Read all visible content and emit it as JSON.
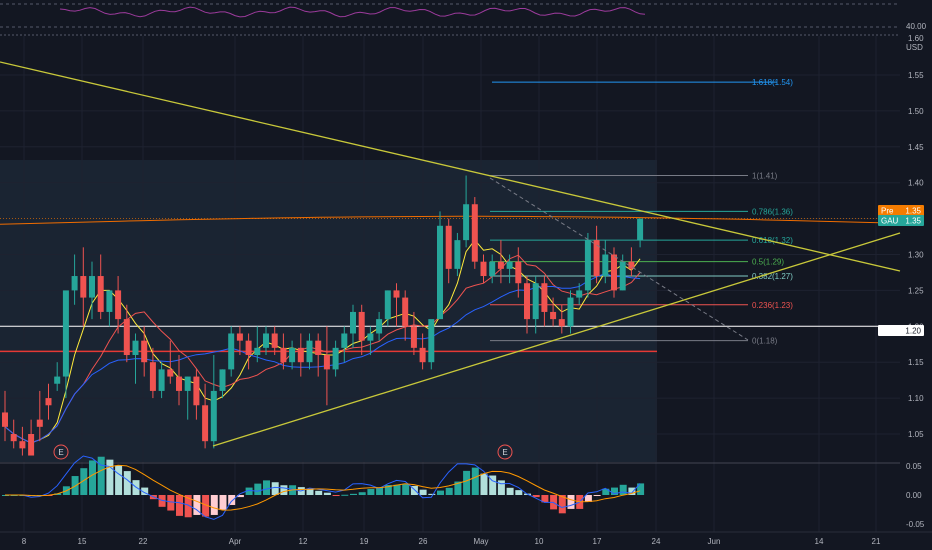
{
  "header": {
    "rsi_level_label": "40.00",
    "price_axis_top_label": "1.60",
    "currency_label": "USD"
  },
  "colors": {
    "background": "#131722",
    "grid": "#1e2230",
    "up": "#26a69a",
    "down": "#ef5350",
    "trendline": "#c8c83a",
    "rsi": "#9c3b9c",
    "fib_top": "#2962ff"
  },
  "chart_data": {
    "type": "candlestick",
    "symbol": "GAU",
    "price_axis": {
      "ylim": [
        1.0,
        1.6
      ],
      "ticks": [
        "1.60",
        "1.55",
        "1.50",
        "1.45",
        "1.40",
        "1.35",
        "1.30",
        "1.25",
        "1.20",
        "1.15",
        "1.10",
        "1.05"
      ],
      "tick_values": [
        1.6,
        1.55,
        1.5,
        1.45,
        1.4,
        1.35,
        1.3,
        1.25,
        1.2,
        1.15,
        1.1,
        1.05
      ]
    },
    "x_axis": {
      "ticks": [
        "8",
        "15",
        "22",
        "Apr",
        "12",
        "19",
        "26",
        "May",
        "10",
        "17",
        "24",
        "Jun",
        "14",
        "21"
      ]
    },
    "price_badges": [
      {
        "label": "Pre",
        "value": "1.35",
        "color": "#f57c00"
      },
      {
        "label": "GAU",
        "value": "1.35",
        "color": "#26a69a"
      },
      {
        "label": "",
        "value": "1.20",
        "color": "#ffffff"
      }
    ],
    "fib_levels": [
      {
        "label": "1.618(1.54)",
        "value": 1.54,
        "color": "#2196f3"
      },
      {
        "label": "1(1.41)",
        "value": 1.41,
        "color": "#787b86"
      },
      {
        "label": "0.786(1.36)",
        "value": 1.36,
        "color": "#26a69a"
      },
      {
        "label": "0.618(1.32)",
        "value": 1.32,
        "color": "#26a69a"
      },
      {
        "label": "0.5(1.29)",
        "value": 1.29,
        "color": "#4caf50"
      },
      {
        "label": "0.382(1.27)",
        "value": 1.27,
        "color": "#80cbc4"
      },
      {
        "label": "0.236(1.23)",
        "value": 1.23,
        "color": "#ef5350"
      },
      {
        "label": "0(1.18)",
        "value": 1.18,
        "color": "#787b86"
      }
    ],
    "horizontal_lines": [
      {
        "value": 1.2,
        "color": "#ffffff"
      },
      {
        "value": 1.165,
        "color": "#e53935"
      }
    ],
    "earnings_markers": [
      "E",
      "E"
    ],
    "candles": [
      [
        1.08,
        1.11,
        1.06,
        1.04
      ],
      [
        1.05,
        1.07,
        1.04,
        1.03
      ],
      [
        1.04,
        1.06,
        1.03,
        1.02
      ],
      [
        1.05,
        1.07,
        1.02,
        1.05
      ],
      [
        1.07,
        1.11,
        1.06,
        1.04
      ],
      [
        1.1,
        1.12,
        1.09,
        1.07
      ],
      [
        1.12,
        1.15,
        1.13,
        1.11
      ],
      [
        1.13,
        1.22,
        1.25,
        1.1
      ],
      [
        1.25,
        1.3,
        1.27,
        1.23
      ],
      [
        1.27,
        1.31,
        1.24,
        1.2
      ],
      [
        1.24,
        1.29,
        1.27,
        1.21
      ],
      [
        1.27,
        1.3,
        1.22,
        1.21
      ],
      [
        1.22,
        1.25,
        1.25,
        1.2
      ],
      [
        1.25,
        1.27,
        1.21,
        1.19
      ],
      [
        1.21,
        1.23,
        1.16,
        1.15
      ],
      [
        1.16,
        1.19,
        1.18,
        1.12
      ],
      [
        1.18,
        1.2,
        1.15,
        1.13
      ],
      [
        1.15,
        1.17,
        1.11,
        1.1
      ],
      [
        1.11,
        1.15,
        1.14,
        1.1
      ],
      [
        1.14,
        1.18,
        1.13,
        1.12
      ],
      [
        1.13,
        1.16,
        1.11,
        1.09
      ],
      [
        1.11,
        1.13,
        1.13,
        1.07
      ],
      [
        1.13,
        1.14,
        1.09,
        1.07
      ],
      [
        1.09,
        1.12,
        1.04,
        1.03
      ],
      [
        1.04,
        1.16,
        1.11,
        1.03
      ],
      [
        1.11,
        1.14,
        1.14,
        1.1
      ],
      [
        1.14,
        1.2,
        1.19,
        1.13
      ],
      [
        1.19,
        1.2,
        1.18,
        1.16
      ],
      [
        1.18,
        1.19,
        1.16,
        1.14
      ],
      [
        1.16,
        1.2,
        1.17,
        1.15
      ],
      [
        1.17,
        1.2,
        1.19,
        1.16
      ],
      [
        1.19,
        1.2,
        1.17,
        1.16
      ],
      [
        1.17,
        1.19,
        1.15,
        1.14
      ],
      [
        1.15,
        1.18,
        1.17,
        1.14
      ],
      [
        1.17,
        1.19,
        1.15,
        1.13
      ],
      [
        1.15,
        1.19,
        1.18,
        1.14
      ],
      [
        1.18,
        1.19,
        1.16,
        1.13
      ],
      [
        1.16,
        1.2,
        1.14,
        1.09
      ],
      [
        1.14,
        1.18,
        1.17,
        1.13
      ],
      [
        1.17,
        1.2,
        1.19,
        1.15
      ],
      [
        1.19,
        1.23,
        1.22,
        1.17
      ],
      [
        1.22,
        1.23,
        1.18,
        1.16
      ],
      [
        1.18,
        1.2,
        1.19,
        1.16
      ],
      [
        1.19,
        1.22,
        1.21,
        1.18
      ],
      [
        1.21,
        1.25,
        1.25,
        1.2
      ],
      [
        1.25,
        1.26,
        1.24,
        1.2
      ],
      [
        1.24,
        1.25,
        1.2,
        1.18
      ],
      [
        1.2,
        1.22,
        1.17,
        1.16
      ],
      [
        1.17,
        1.19,
        1.15,
        1.14
      ],
      [
        1.15,
        1.2,
        1.21,
        1.14
      ],
      [
        1.21,
        1.36,
        1.34,
        1.24
      ],
      [
        1.34,
        1.35,
        1.28,
        1.26
      ],
      [
        1.28,
        1.33,
        1.32,
        1.27
      ],
      [
        1.32,
        1.41,
        1.37,
        1.31
      ],
      [
        1.37,
        1.38,
        1.29,
        1.28
      ],
      [
        1.29,
        1.3,
        1.27,
        1.26
      ],
      [
        1.27,
        1.3,
        1.29,
        1.26
      ],
      [
        1.29,
        1.32,
        1.28,
        1.26
      ],
      [
        1.28,
        1.3,
        1.29,
        1.26
      ],
      [
        1.29,
        1.31,
        1.26,
        1.24
      ],
      [
        1.26,
        1.27,
        1.21,
        1.19
      ],
      [
        1.21,
        1.27,
        1.26,
        1.19
      ],
      [
        1.26,
        1.27,
        1.22,
        1.2
      ],
      [
        1.22,
        1.24,
        1.21,
        1.2
      ],
      [
        1.21,
        1.23,
        1.2,
        1.19
      ],
      [
        1.2,
        1.25,
        1.24,
        1.19
      ],
      [
        1.24,
        1.26,
        1.25,
        1.23
      ],
      [
        1.25,
        1.33,
        1.32,
        1.24
      ],
      [
        1.32,
        1.34,
        1.27,
        1.26
      ],
      [
        1.27,
        1.32,
        1.3,
        1.26
      ],
      [
        1.3,
        1.31,
        1.25,
        1.24
      ],
      [
        1.25,
        1.3,
        1.29,
        1.25
      ],
      [
        1.29,
        1.31,
        1.28,
        1.27
      ],
      [
        1.32,
        1.35,
        1.35,
        1.31
      ]
    ],
    "macd_axis": {
      "ticks": [
        "0.05",
        "0.00",
        "-0.05"
      ],
      "tick_values": [
        0.05,
        0.0,
        -0.05
      ]
    }
  }
}
